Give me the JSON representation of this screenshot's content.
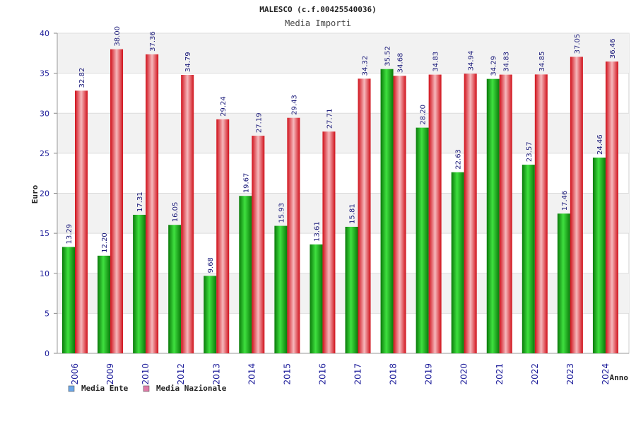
{
  "chart_data": {
    "type": "bar",
    "title": "MALESCO (c.f.00425540036)",
    "subtitle": "Media Importi",
    "ylabel": "Euro",
    "xlabel": "Anno",
    "ylim": [
      0,
      40
    ],
    "yticks": [
      "0",
      "5",
      "10",
      "15",
      "20",
      "25",
      "30",
      "35",
      "40"
    ],
    "grid": true,
    "legend_position": "bottom-left",
    "categories": [
      "2006",
      "2009",
      "2010",
      "2012",
      "2013",
      "2014",
      "2015",
      "2016",
      "2017",
      "2018",
      "2019",
      "2020",
      "2021",
      "2022",
      "2023",
      "2024"
    ],
    "series": [
      {
        "name": "Media Ente",
        "legend_color": "#6aa6e8",
        "color": "#1aa81a",
        "values": [
          13.29,
          12.2,
          17.31,
          16.05,
          9.68,
          19.67,
          15.93,
          13.61,
          15.81,
          35.52,
          28.2,
          22.63,
          34.29,
          23.57,
          17.46,
          24.46
        ],
        "labels": [
          "13.29",
          "12.20",
          "17.31",
          "16.05",
          "9.68",
          "19.67",
          "15.93",
          "13.61",
          "15.81",
          "35.52",
          "28.20",
          "22.63",
          "34.29",
          "23.57",
          "17.46",
          "24.46"
        ]
      },
      {
        "name": "Media Nazionale",
        "legend_color": "#e07aa8",
        "color": "#e8141e",
        "values": [
          32.82,
          38.0,
          37.36,
          34.79,
          29.24,
          27.19,
          29.43,
          27.71,
          34.32,
          34.68,
          34.83,
          34.94,
          34.83,
          34.85,
          37.05,
          36.46
        ],
        "labels": [
          "32.82",
          "38.00",
          "37.36",
          "34.79",
          "29.24",
          "27.19",
          "29.43",
          "27.71",
          "34.32",
          "34.68",
          "34.83",
          "34.94",
          "34.83",
          "34.85",
          "37.05",
          "36.46"
        ]
      }
    ]
  }
}
